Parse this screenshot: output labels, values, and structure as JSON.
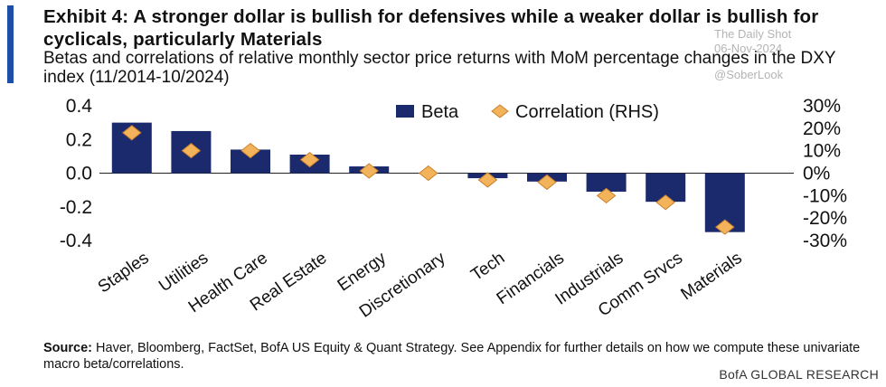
{
  "header": {
    "title": "Exhibit 4: A stronger dollar is bullish for defensives while a weaker dollar is bullish for cyclicals, particularly Materials",
    "subtitle": "Betas and correlations of relative monthly sector price returns with MoM percentage changes in the DXY index (11/2014-10/2024)"
  },
  "watermark": {
    "line1": "The Daily Shot",
    "line2": "06-Nov-2024",
    "line3": "@SoberLook"
  },
  "footer": {
    "source_label": "Source:",
    "source_text": " Haver, Bloomberg, FactSet, BofA US Equity & Quant Strategy. See Appendix for further details on how we compute these univariate macro beta/correlations.",
    "brand": "BofA GLOBAL RESEARCH"
  },
  "colors": {
    "bar": "#1a2a6c",
    "marker": "#f2b35b",
    "marker_edge": "#c9812c",
    "accent": "#1f4ea8"
  },
  "chart_data": {
    "type": "bar",
    "categories": [
      "Staples",
      "Utilities",
      "Health Care",
      "Real Estate",
      "Energy",
      "Discretionary",
      "Tech",
      "Financials",
      "Industrials",
      "Comm Srvcs",
      "Materials"
    ],
    "series": [
      {
        "name": "Beta",
        "type": "bar",
        "axis": "left",
        "values": [
          0.3,
          0.25,
          0.14,
          0.11,
          0.04,
          0.0,
          -0.03,
          -0.05,
          -0.11,
          -0.17,
          -0.35
        ]
      },
      {
        "name": "Correlation (RHS)",
        "type": "marker",
        "axis": "right",
        "values": [
          18,
          10,
          10,
          6,
          1,
          0,
          -3,
          -4,
          -10,
          -13,
          -24
        ]
      }
    ],
    "y_left": {
      "ylim": [
        -0.4,
        0.4
      ],
      "ticks": [
        "0.4",
        "0.2",
        "0.0",
        "-0.2",
        "-0.4"
      ],
      "tick_values": [
        0.4,
        0.2,
        0.0,
        -0.2,
        -0.4
      ]
    },
    "y_right": {
      "ylim": [
        -30,
        30
      ],
      "ticks": [
        "30%",
        "20%",
        "10%",
        "0%",
        "-10%",
        "-20%",
        "-30%"
      ],
      "tick_values": [
        30,
        20,
        10,
        0,
        -10,
        -20,
        -30
      ]
    },
    "legend_position": "top-right",
    "grid": false
  }
}
